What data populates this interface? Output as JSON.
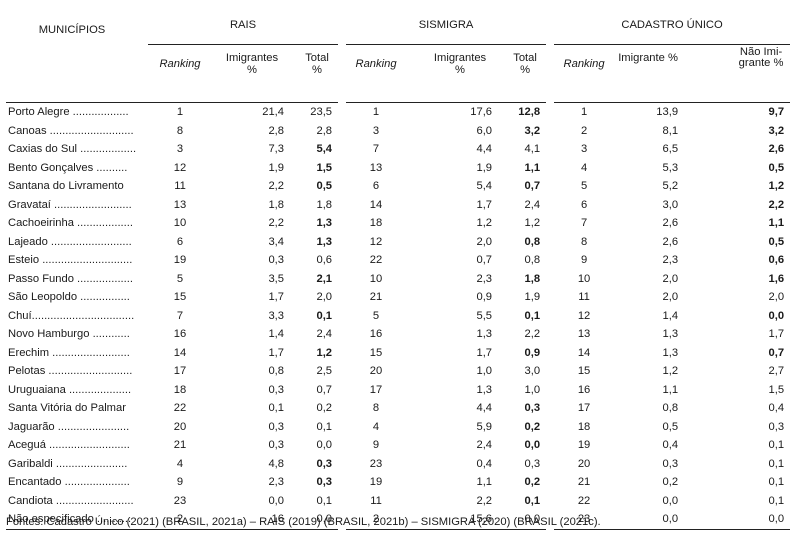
{
  "header": {
    "municipios": "MUNICÍPIOS",
    "groups": [
      "RAIS",
      "SISMIGRA",
      "CADASTRO ÚNICO"
    ],
    "sub": {
      "ranking": "Ranking",
      "imigrantes_pct": "Imigrantes %",
      "total_pct": "Total %",
      "imigrante_pct": "Imigrante %",
      "nao_imigrante_pct": "Não Imi-grante %"
    }
  },
  "rows": [
    {
      "m": "Porto Alegre ..................",
      "r": [
        "1",
        "21,4",
        "23,5",
        "1",
        "17,6",
        "12,8",
        "1",
        "13,9",
        "9,7"
      ],
      "b": [
        5,
        8
      ]
    },
    {
      "m": "Canoas ...........................",
      "r": [
        "8",
        "2,8",
        "2,8",
        "3",
        "6,0",
        "3,2",
        "2",
        "8,1",
        "3,2"
      ],
      "b": [
        5,
        8
      ]
    },
    {
      "m": "Caxias do Sul ..................",
      "r": [
        "3",
        "7,3",
        "5,4",
        "7",
        "4,4",
        "4,1",
        "3",
        "6,5",
        "2,6"
      ],
      "b": [
        2,
        8
      ]
    },
    {
      "m": "Bento Gonçalves ..........",
      "r": [
        "12",
        "1,9",
        "1,5",
        "13",
        "1,9",
        "1,1",
        "4",
        "5,3",
        "0,5"
      ],
      "b": [
        2,
        5,
        8
      ]
    },
    {
      "m": "Santana do Livramento",
      "r": [
        "11",
        "2,2",
        "0,5",
        "6",
        "5,4",
        "0,7",
        "5",
        "5,2",
        "1,2"
      ],
      "b": [
        2,
        5,
        8
      ]
    },
    {
      "m": "Gravataí .........................",
      "r": [
        "13",
        "1,8",
        "1,8",
        "14",
        "1,7",
        "2,4",
        "6",
        "3,0",
        "2,2"
      ],
      "b": [
        8
      ]
    },
    {
      "m": "Cachoeirinha ..................",
      "r": [
        "10",
        "2,2",
        "1,3",
        "18",
        "1,2",
        "1,2",
        "7",
        "2,6",
        "1,1"
      ],
      "b": [
        2,
        8
      ]
    },
    {
      "m": "Lajeado ..........................",
      "r": [
        "6",
        "3,4",
        "1,3",
        "12",
        "2,0",
        "0,8",
        "8",
        "2,6",
        "0,5"
      ],
      "b": [
        2,
        5,
        8
      ]
    },
    {
      "m": "Esteio .............................",
      "r": [
        "19",
        "0,3",
        "0,6",
        "22",
        "0,7",
        "0,8",
        "9",
        "2,3",
        "0,6"
      ],
      "b": [
        8
      ]
    },
    {
      "m": "Passo Fundo ..................",
      "r": [
        "5",
        "3,5",
        "2,1",
        "10",
        "2,3",
        "1,8",
        "10",
        "2,0",
        "1,6"
      ],
      "b": [
        2,
        5,
        8
      ]
    },
    {
      "m": "São Leopoldo ................",
      "r": [
        "15",
        "1,7",
        "2,0",
        "21",
        "0,9",
        "1,9",
        "11",
        "2,0",
        "2,0"
      ],
      "b": []
    },
    {
      "m": "Chuí.................................",
      "r": [
        "7",
        "3,3",
        "0,1",
        "5",
        "5,5",
        "0,1",
        "12",
        "1,4",
        "0,0"
      ],
      "b": [
        2,
        5,
        8
      ]
    },
    {
      "m": "Novo Hamburgo ............",
      "r": [
        "16",
        "1,4",
        "2,4",
        "16",
        "1,3",
        "2,2",
        "13",
        "1,3",
        "1,7"
      ],
      "b": []
    },
    {
      "m": "Erechim .........................",
      "r": [
        "14",
        "1,7",
        "1,2",
        "15",
        "1,7",
        "0,9",
        "14",
        "1,3",
        "0,7"
      ],
      "b": [
        2,
        5,
        8
      ]
    },
    {
      "m": "Pelotas ...........................",
      "r": [
        "17",
        "0,8",
        "2,5",
        "20",
        "1,0",
        "3,0",
        "15",
        "1,2",
        "2,7"
      ],
      "b": []
    },
    {
      "m": "Uruguaiana ....................",
      "r": [
        "18",
        "0,3",
        "0,7",
        "17",
        "1,3",
        "1,0",
        "16",
        "1,1",
        "1,5"
      ],
      "b": []
    },
    {
      "m": "Santa Vitória do Palmar",
      "r": [
        "22",
        "0,1",
        "0,2",
        "8",
        "4,4",
        "0,3",
        "17",
        "0,8",
        "0,4"
      ],
      "b": [
        5
      ]
    },
    {
      "m": "Jaguarão .......................",
      "r": [
        "20",
        "0,3",
        "0,1",
        "4",
        "5,9",
        "0,2",
        "18",
        "0,5",
        "0,3"
      ],
      "b": [
        5
      ]
    },
    {
      "m": "Aceguá ..........................",
      "r": [
        "21",
        "0,3",
        "0,0",
        "9",
        "2,4",
        "0,0",
        "19",
        "0,4",
        "0,1"
      ],
      "b": [
        5
      ]
    },
    {
      "m": "Garibaldi .......................",
      "r": [
        "4",
        "4,8",
        "0,3",
        "23",
        "0,4",
        "0,3",
        "20",
        "0,3",
        "0,1"
      ],
      "b": [
        2
      ]
    },
    {
      "m": "Encantado .....................",
      "r": [
        "9",
        "2,3",
        "0,3",
        "19",
        "1,1",
        "0,2",
        "21",
        "0,2",
        "0,1"
      ],
      "b": [
        2,
        5
      ]
    },
    {
      "m": "Candiota .........................",
      "r": [
        "23",
        "0,0",
        "0,1",
        "11",
        "2,2",
        "0,1",
        "22",
        "0,0",
        "0,1"
      ],
      "b": [
        5
      ]
    },
    {
      "m": "Não especificado ...........",
      "r": [
        "2",
        "16",
        "0,0",
        "2",
        "15,6",
        "0,0",
        "23",
        "0,0",
        "0,0"
      ],
      "b": []
    }
  ],
  "source": "Fontes: Cadastro Único (2021) (BRASIL, 2021a) – RAIS (2019) (BRASIL, 2021b) – SISMIGRA (2020) (BRASIL (2021c)."
}
